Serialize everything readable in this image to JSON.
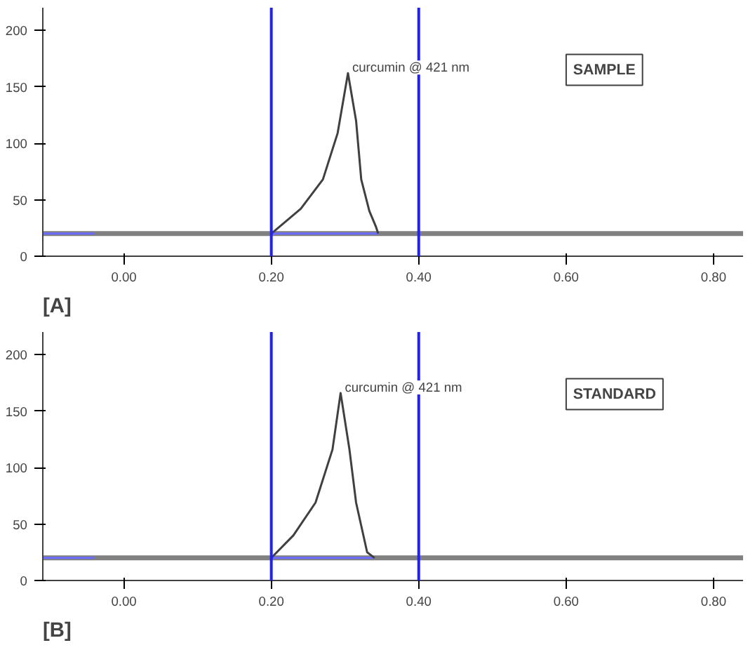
{
  "chart_data": [
    {
      "type": "line",
      "title": "[A]",
      "xlim": [
        -0.11,
        0.84
      ],
      "ylim": [
        0,
        220
      ],
      "xticks": [
        {
          "value": 0,
          "label": "0.00"
        },
        {
          "value": 0.2,
          "label": "0.20"
        },
        {
          "value": 0.4,
          "label": "0.40"
        },
        {
          "value": 0.6,
          "label": "0.60"
        },
        {
          "value": 0.8,
          "label": "0.80"
        }
      ],
      "yticks": [
        0,
        50,
        100,
        150,
        200
      ],
      "series": [
        {
          "color": "#808080",
          "x": [
            -0.11,
            0.84
          ],
          "values": [
            20,
            20
          ]
        },
        {
          "color": "#6b6bff",
          "x": [
            -0.11,
            -0.04,
            0.0,
            0.2,
            0.345
          ],
          "values": [
            20,
            20,
            null,
            20,
            20
          ]
        },
        {
          "color": "#404040",
          "x": [
            0.2,
            0.24,
            0.27,
            0.29,
            0.304,
            0.315,
            0.322,
            0.333,
            0.342,
            0.345
          ],
          "values": [
            20,
            42,
            68,
            109,
            162,
            120,
            68,
            40,
            26,
            20
          ]
        }
      ],
      "ref_lines": [
        {
          "axis": "x",
          "value": 0.2,
          "color": "#2020ff"
        },
        {
          "axis": "x",
          "value": 0.4,
          "color": "#2020ff"
        }
      ],
      "annotations": [
        {
          "text": "curcumin @ 421 nm",
          "x": 0.304,
          "y": 162
        },
        "SAMPLE"
      ]
    },
    {
      "type": "line",
      "title": "[B]",
      "xlim": [
        -0.11,
        0.84
      ],
      "ylim": [
        0,
        220
      ],
      "xticks": [
        {
          "value": 0,
          "label": "0.00"
        },
        {
          "value": 0.2,
          "label": "0.20"
        },
        {
          "value": 0.4,
          "label": "0.40"
        },
        {
          "value": 0.6,
          "label": "0.60"
        },
        {
          "value": 0.8,
          "label": "0.80"
        }
      ],
      "yticks": [
        0,
        50,
        100,
        150,
        200
      ],
      "series": [
        {
          "color": "#808080",
          "x": [
            -0.11,
            0.84
          ],
          "values": [
            20,
            20
          ]
        },
        {
          "color": "#6b6bff",
          "x": [
            -0.11,
            -0.04,
            0.0,
            0.2,
            0.34
          ],
          "values": [
            20,
            20,
            null,
            20,
            20
          ]
        },
        {
          "color": "#404040",
          "x": [
            0.2,
            0.23,
            0.26,
            0.283,
            0.294,
            0.306,
            0.315,
            0.33,
            0.34
          ],
          "values": [
            20,
            40,
            69,
            116,
            166,
            116,
            69,
            25,
            20
          ]
        }
      ],
      "ref_lines": [
        {
          "axis": "x",
          "value": 0.2,
          "color": "#2020ff"
        },
        {
          "axis": "x",
          "value": 0.4,
          "color": "#2020ff"
        }
      ],
      "annotations": [
        {
          "text": "curcumin @ 421 nm",
          "x": 0.294,
          "y": 166
        },
        "STANDARD"
      ]
    }
  ]
}
